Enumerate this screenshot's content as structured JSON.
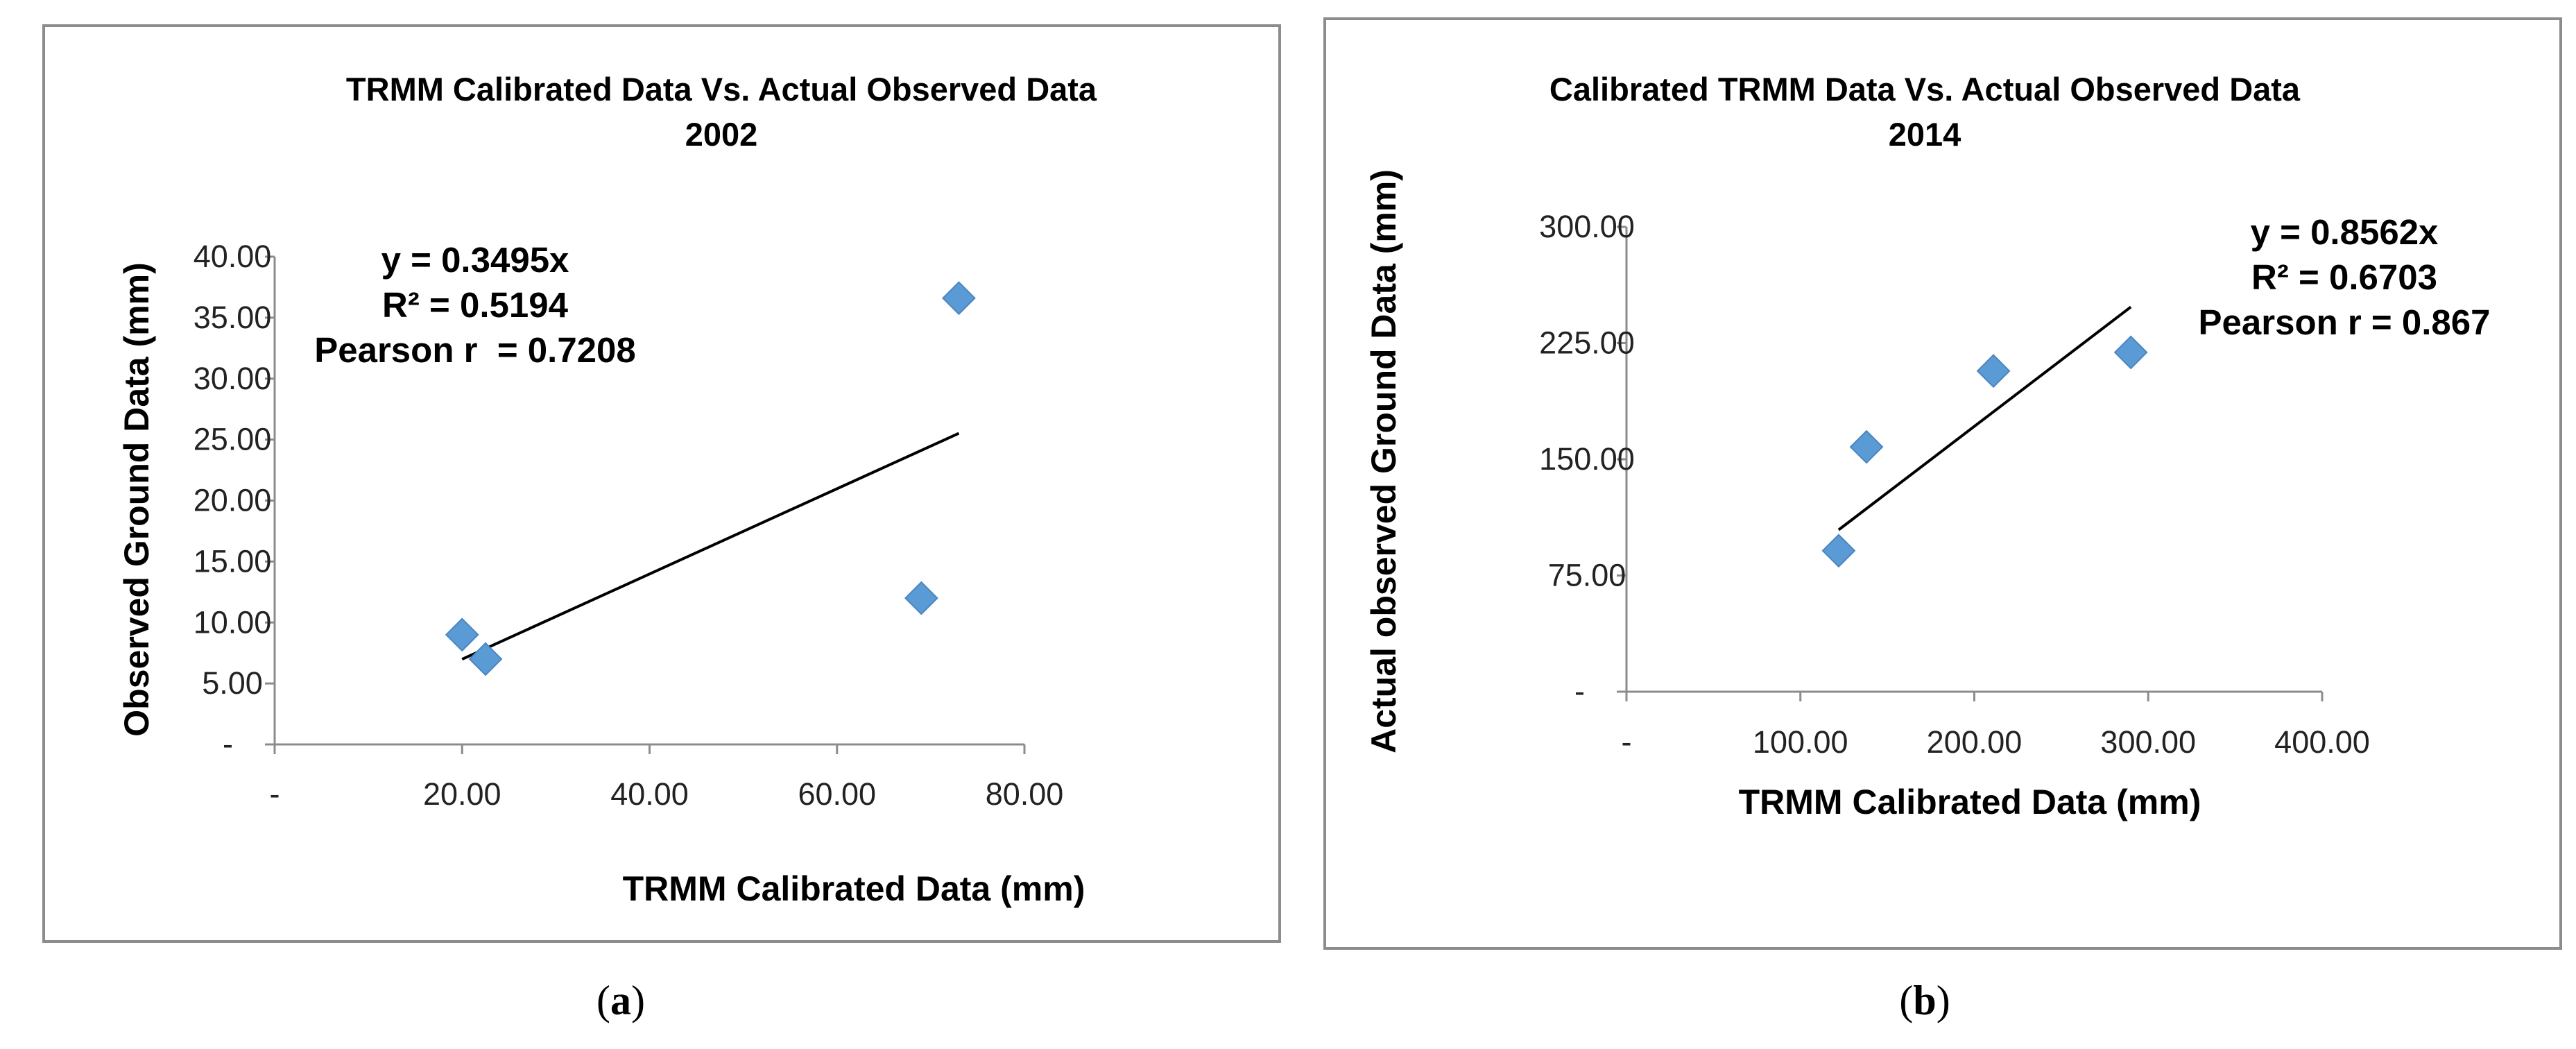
{
  "chart_data": [
    {
      "type": "scatter",
      "id": "a",
      "caption_label": "a",
      "title_line1": "TRMM Calibrated Data Vs. Actual Observed Data",
      "title_line2": "2002",
      "xlabel": "TRMM Calibrated Data (mm)",
      "ylabel": "Observed Ground Data (mm)",
      "xlim": [
        0,
        80
      ],
      "ylim": [
        0,
        40
      ],
      "x_ticks": [
        0,
        20,
        40,
        60,
        80
      ],
      "x_tick_labels": [
        "-",
        "20.00",
        "40.00",
        "60.00",
        "80.00"
      ],
      "y_ticks": [
        0,
        5,
        10,
        15,
        20,
        25,
        30,
        35,
        40
      ],
      "y_tick_labels": [
        "-",
        "5.00",
        "10.00",
        "15.00",
        "20.00",
        "25.00",
        "30.00",
        "35.00",
        "40.00"
      ],
      "points": [
        {
          "x": 20.0,
          "y": 9.0
        },
        {
          "x": 22.5,
          "y": 7.0
        },
        {
          "x": 69.0,
          "y": 12.0
        },
        {
          "x": 73.0,
          "y": 36.6
        }
      ],
      "trendline": {
        "x_start": 20.0,
        "x_end": 73.0,
        "slope": 0.3495
      },
      "annotation": {
        "equation": "y = 0.3495x",
        "r_squared": "R² = 0.5194",
        "pearson": "Pearson r  = 0.7208"
      },
      "marker_color": "#5b9bd5",
      "line_color": "#000000",
      "grid": false
    },
    {
      "type": "scatter",
      "id": "b",
      "caption_label": "b",
      "title_line1": "Calibrated TRMM Data Vs. Actual Observed Data",
      "title_line2": "2014",
      "xlabel": "TRMM Calibrated Data (mm)",
      "ylabel": "Actual observed Ground Data (mm)",
      "xlim": [
        0,
        400
      ],
      "ylim": [
        0,
        300
      ],
      "x_ticks": [
        0,
        100,
        200,
        300,
        400
      ],
      "x_tick_labels": [
        "-",
        "100.00",
        "200.00",
        "300.00",
        "400.00"
      ],
      "y_ticks": [
        0,
        75,
        150,
        225,
        300
      ],
      "y_tick_labels": [
        "-",
        "75.00",
        "150.00",
        "225.00",
        "300.00"
      ],
      "points": [
        {
          "x": 122,
          "y": 91
        },
        {
          "x": 138,
          "y": 158
        },
        {
          "x": 211,
          "y": 207
        },
        {
          "x": 290,
          "y": 219
        }
      ],
      "trendline": {
        "x_start": 122,
        "x_end": 290,
        "slope": 0.8562
      },
      "annotation": {
        "equation": "y = 0.8562x",
        "r_squared": "R² = 0.6703",
        "pearson": "Pearson r = 0.867"
      },
      "marker_color": "#5b9bd5",
      "line_color": "#000000",
      "grid": false
    }
  ]
}
